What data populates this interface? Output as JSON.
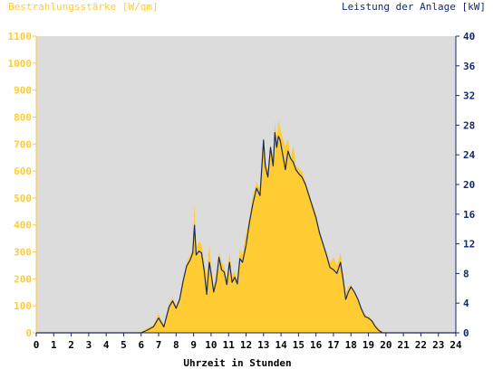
{
  "colors": {
    "background": "#ffffff",
    "plot_background": "#dcdcdc",
    "irradiance_fill": "#ffcc33",
    "power_line": "#1a2a5c",
    "left_axis_text": "#ffcc33",
    "right_axis_text": "#14286e",
    "x_axis_text": "#000000"
  },
  "chart_data": {
    "type": "area",
    "left_axis_title": "Bestrahlungsstärke [W/qm]",
    "right_axis_title": "Leistung der Anlage [kW]",
    "xlabel": "Uhrzeit in Stunden",
    "xlim": [
      0,
      24
    ],
    "y_left_lim": [
      0,
      1100
    ],
    "y_right_lim": [
      0,
      40
    ],
    "x_ticks": [
      "0",
      "1",
      "2",
      "3",
      "4",
      "5",
      "6",
      "7",
      "8",
      "9",
      "10",
      "11",
      "12",
      "13",
      "14",
      "15",
      "16",
      "17",
      "18",
      "19",
      "20",
      "21",
      "22",
      "23",
      "24"
    ],
    "y_left_ticks": [
      "0",
      "100",
      "200",
      "300",
      "400",
      "500",
      "600",
      "700",
      "800",
      "900",
      "1000",
      "1100"
    ],
    "y_right_ticks": [
      "0",
      "4",
      "8",
      "12",
      "16",
      "20",
      "24",
      "28",
      "32",
      "36",
      "40"
    ],
    "grid": false,
    "series": [
      {
        "name": "Bestrahlungsstärke",
        "axis": "left",
        "style": "filled-area",
        "x": [
          0,
          5.9,
          6.3,
          6.7,
          7.0,
          7.3,
          7.6,
          7.8,
          8.0,
          8.2,
          8.4,
          8.6,
          8.8,
          8.95,
          9.05,
          9.15,
          9.3,
          9.45,
          9.6,
          9.75,
          9.9,
          10.0,
          10.15,
          10.3,
          10.45,
          10.6,
          10.75,
          10.9,
          11.05,
          11.2,
          11.35,
          11.5,
          11.65,
          11.8,
          12.0,
          12.2,
          12.4,
          12.6,
          12.8,
          13.0,
          13.1,
          13.25,
          13.4,
          13.55,
          13.65,
          13.75,
          13.85,
          13.95,
          14.1,
          14.25,
          14.4,
          14.55,
          14.7,
          14.85,
          15.0,
          15.2,
          15.4,
          15.6,
          15.8,
          16.0,
          16.2,
          16.4,
          16.6,
          16.8,
          17.0,
          17.2,
          17.4,
          17.55,
          17.7,
          17.85,
          18.0,
          18.2,
          18.4,
          18.6,
          18.8,
          19.0,
          19.2,
          19.4,
          19.6,
          19.8,
          20.0,
          24
        ],
        "values": [
          0,
          0,
          15,
          30,
          70,
          30,
          110,
          130,
          100,
          130,
          200,
          260,
          290,
          310,
          480,
          310,
          340,
          330,
          260,
          210,
          330,
          250,
          170,
          220,
          300,
          260,
          250,
          200,
          300,
          210,
          230,
          200,
          310,
          290,
          370,
          430,
          510,
          560,
          530,
          720,
          650,
          600,
          700,
          640,
          790,
          710,
          790,
          760,
          720,
          690,
          720,
          640,
          700,
          620,
          610,
          600,
          560,
          520,
          480,
          440,
          380,
          330,
          300,
          260,
          280,
          250,
          300,
          220,
          150,
          170,
          180,
          150,
          120,
          90,
          70,
          60,
          50,
          30,
          15,
          5,
          0,
          0
        ]
      },
      {
        "name": "Leistung der Anlage",
        "axis": "right",
        "style": "line",
        "x": [
          0,
          6.0,
          6.3,
          6.7,
          7.0,
          7.3,
          7.6,
          7.8,
          8.0,
          8.2,
          8.4,
          8.6,
          8.8,
          8.95,
          9.05,
          9.15,
          9.3,
          9.45,
          9.6,
          9.75,
          9.9,
          10.0,
          10.15,
          10.3,
          10.45,
          10.6,
          10.75,
          10.9,
          11.05,
          11.2,
          11.35,
          11.5,
          11.65,
          11.8,
          12.0,
          12.2,
          12.4,
          12.6,
          12.8,
          13.0,
          13.1,
          13.25,
          13.4,
          13.55,
          13.65,
          13.75,
          13.85,
          13.95,
          14.1,
          14.25,
          14.4,
          14.55,
          14.7,
          14.85,
          15.0,
          15.2,
          15.4,
          15.6,
          15.8,
          16.0,
          16.2,
          16.4,
          16.6,
          16.8,
          17.0,
          17.2,
          17.4,
          17.55,
          17.7,
          17.85,
          18.0,
          18.2,
          18.4,
          18.6,
          18.8,
          19.0,
          19.2,
          19.4,
          19.6,
          19.8,
          20.0,
          24
        ],
        "values": [
          0,
          0,
          0.3,
          0.8,
          2.0,
          0.8,
          3.5,
          4.3,
          3.3,
          4.5,
          7.0,
          9.0,
          9.8,
          10.8,
          14.5,
          10.5,
          11.0,
          10.8,
          8.5,
          5.2,
          9.5,
          8.0,
          5.5,
          7.0,
          10.2,
          8.5,
          8.2,
          6.5,
          9.5,
          6.8,
          7.5,
          6.6,
          10.0,
          9.5,
          11.8,
          15.0,
          17.5,
          19.5,
          18.5,
          26.0,
          22.5,
          21.0,
          25.0,
          22.5,
          27.0,
          25.0,
          26.5,
          26.0,
          24.0,
          22.0,
          24.5,
          23.5,
          23.0,
          22.0,
          21.5,
          21.0,
          20.0,
          18.5,
          17.0,
          15.5,
          13.5,
          12.0,
          10.5,
          8.8,
          8.5,
          8.0,
          9.5,
          7.2,
          4.5,
          5.5,
          6.2,
          5.5,
          4.5,
          3.2,
          2.2,
          2.0,
          1.6,
          0.8,
          0.3,
          0,
          0,
          0
        ]
      }
    ]
  }
}
